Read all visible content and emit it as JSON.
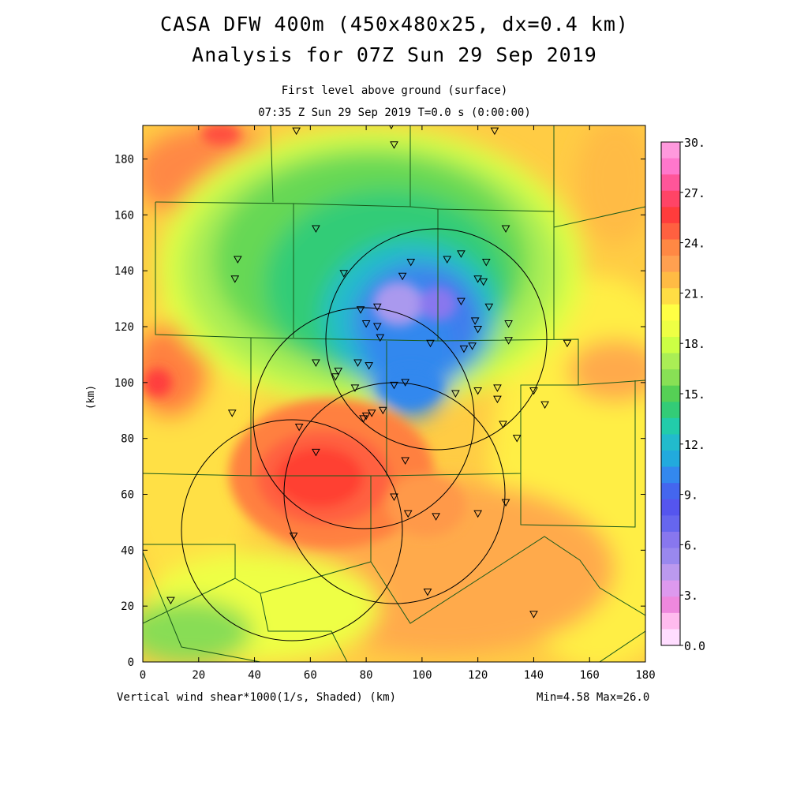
{
  "title_line1": "CASA DFW 400m (450x480x25, dx=0.4 km)",
  "title_line2": "Analysis for 07Z Sun 29 Sep 2019",
  "subtitle_line1": "First level above ground (surface)",
  "subtitle_line2": "07:35 Z Sun 29 Sep 2019   T=0.0 s (0:00:00)",
  "y_axis_label": "(km)",
  "x_axis_label": "Vertical wind shear*1000(1/s, Shaded)  (km)",
  "min_max_label": "Min=4.58 Max=26.0",
  "x_ticks": [
    "0",
    "20",
    "40",
    "60",
    "80",
    "100",
    "120",
    "140",
    "160",
    "180"
  ],
  "y_ticks": [
    "0",
    "20",
    "40",
    "60",
    "80",
    "100",
    "120",
    "140",
    "160",
    "180"
  ],
  "colorbar_labels": [
    "30.",
    "27.",
    "24.",
    "21.",
    "18.",
    "15.",
    "12.",
    "9.",
    "6.",
    "3.",
    "0.0"
  ],
  "colorbar_colors": [
    "#ff99dd",
    "#ff77cc",
    "#ff5599",
    "#ff4466",
    "#ff3c3c",
    "#ff6040",
    "#ff8844",
    "#ffa050",
    "#ffbb44",
    "#ffdd44",
    "#ffff44",
    "#eeff44",
    "#ccff44",
    "#aaee55",
    "#88e055",
    "#55d055",
    "#33cc77",
    "#22ccaa",
    "#22bbcc",
    "#22aadd",
    "#3388ee",
    "#4466ee",
    "#5555ee",
    "#6666ee",
    "#8877ee",
    "#9988ee",
    "#bb99ee",
    "#dd99ee",
    "#ee88dd",
    "#ffbbee",
    "#ffddff"
  ],
  "chart_data": {
    "type": "heatmap",
    "variable": "Vertical wind shear*1000 (1/s)",
    "xlim": [
      0,
      180
    ],
    "ylim": [
      0,
      192
    ],
    "min": 4.58,
    "max": 26.0,
    "radar_ranges_center_km": [
      [
        107,
        116
      ],
      [
        80,
        89
      ],
      [
        97,
        61
      ],
      [
        54,
        48
      ]
    ],
    "radar_range_radius_km": 39,
    "stations_km": [
      [
        55,
        190
      ],
      [
        89,
        192
      ],
      [
        90,
        185
      ],
      [
        126,
        190
      ],
      [
        62,
        155
      ],
      [
        130,
        155
      ],
      [
        34,
        144
      ],
      [
        33,
        137
      ],
      [
        72,
        139
      ],
      [
        96,
        143
      ],
      [
        109,
        144
      ],
      [
        114,
        146
      ],
      [
        123,
        143
      ],
      [
        120,
        137
      ],
      [
        122,
        136
      ],
      [
        93,
        138
      ],
      [
        114,
        129
      ],
      [
        124,
        127
      ],
      [
        78,
        126
      ],
      [
        84,
        127
      ],
      [
        80,
        121
      ],
      [
        84,
        120
      ],
      [
        119,
        122
      ],
      [
        120,
        119
      ],
      [
        131,
        121
      ],
      [
        85,
        116
      ],
      [
        103,
        114
      ],
      [
        115,
        112
      ],
      [
        118,
        113
      ],
      [
        131,
        115
      ],
      [
        152,
        114
      ],
      [
        62,
        107
      ],
      [
        70,
        104
      ],
      [
        77,
        107
      ],
      [
        81,
        106
      ],
      [
        69,
        102
      ],
      [
        76,
        98
      ],
      [
        90,
        99
      ],
      [
        94,
        100
      ],
      [
        112,
        96
      ],
      [
        120,
        97
      ],
      [
        127,
        98
      ],
      [
        127,
        94
      ],
      [
        140,
        97
      ],
      [
        144,
        92
      ],
      [
        32,
        89
      ],
      [
        82,
        89
      ],
      [
        79,
        87
      ],
      [
        80,
        88
      ],
      [
        86,
        90
      ],
      [
        129,
        85
      ],
      [
        134,
        80
      ],
      [
        56,
        84
      ],
      [
        62,
        75
      ],
      [
        94,
        72
      ],
      [
        90,
        59
      ],
      [
        130,
        57
      ],
      [
        95,
        53
      ],
      [
        105,
        52
      ],
      [
        120,
        53
      ],
      [
        54,
        45
      ],
      [
        102,
        25
      ],
      [
        10,
        22
      ],
      [
        140,
        17
      ]
    ],
    "grid": false
  }
}
